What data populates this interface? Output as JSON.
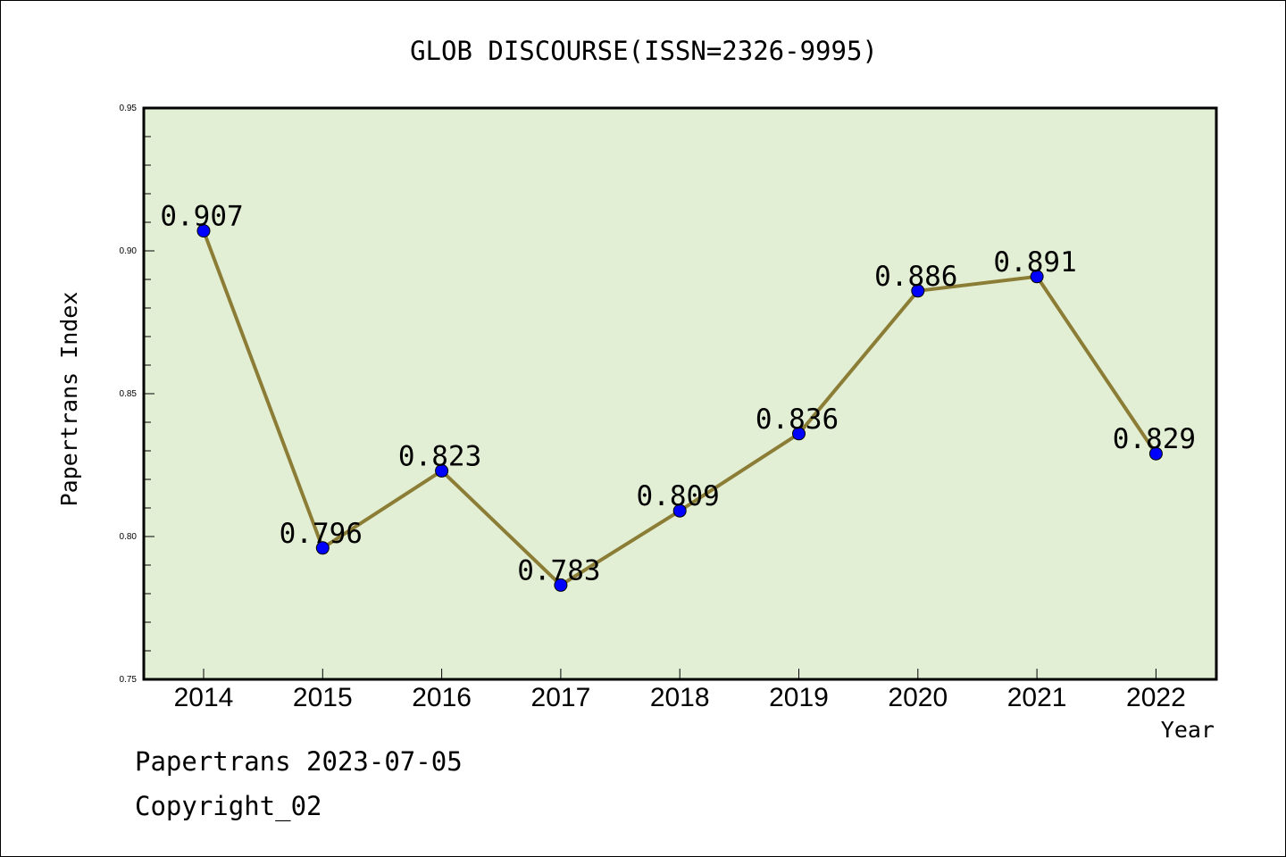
{
  "chart_data": {
    "type": "line",
    "title": "GLOB DISCOURSE(ISSN=2326-9995)",
    "xlabel": "Year",
    "ylabel": "Papertrans Index",
    "categories": [
      "2014",
      "2015",
      "2016",
      "2017",
      "2018",
      "2019",
      "2020",
      "2021",
      "2022"
    ],
    "values": [
      0.907,
      0.796,
      0.823,
      0.783,
      0.809,
      0.836,
      0.886,
      0.891,
      0.829
    ],
    "data_labels": [
      "0.907",
      "0.796",
      "0.823",
      "0.783",
      "0.809",
      "0.836",
      "0.886",
      "0.891",
      "0.829"
    ],
    "ylim": [
      0.75,
      0.95
    ],
    "yticks": [
      "0.75",
      "0.80",
      "0.85",
      "0.90",
      "0.95"
    ],
    "grid": false,
    "colors": {
      "plot_background": "#e2efd5",
      "line": "#8b7d35",
      "marker": "#0000ff"
    }
  },
  "footer": {
    "line1": "Papertrans 2023-07-05",
    "line2": "Copyright_02"
  }
}
